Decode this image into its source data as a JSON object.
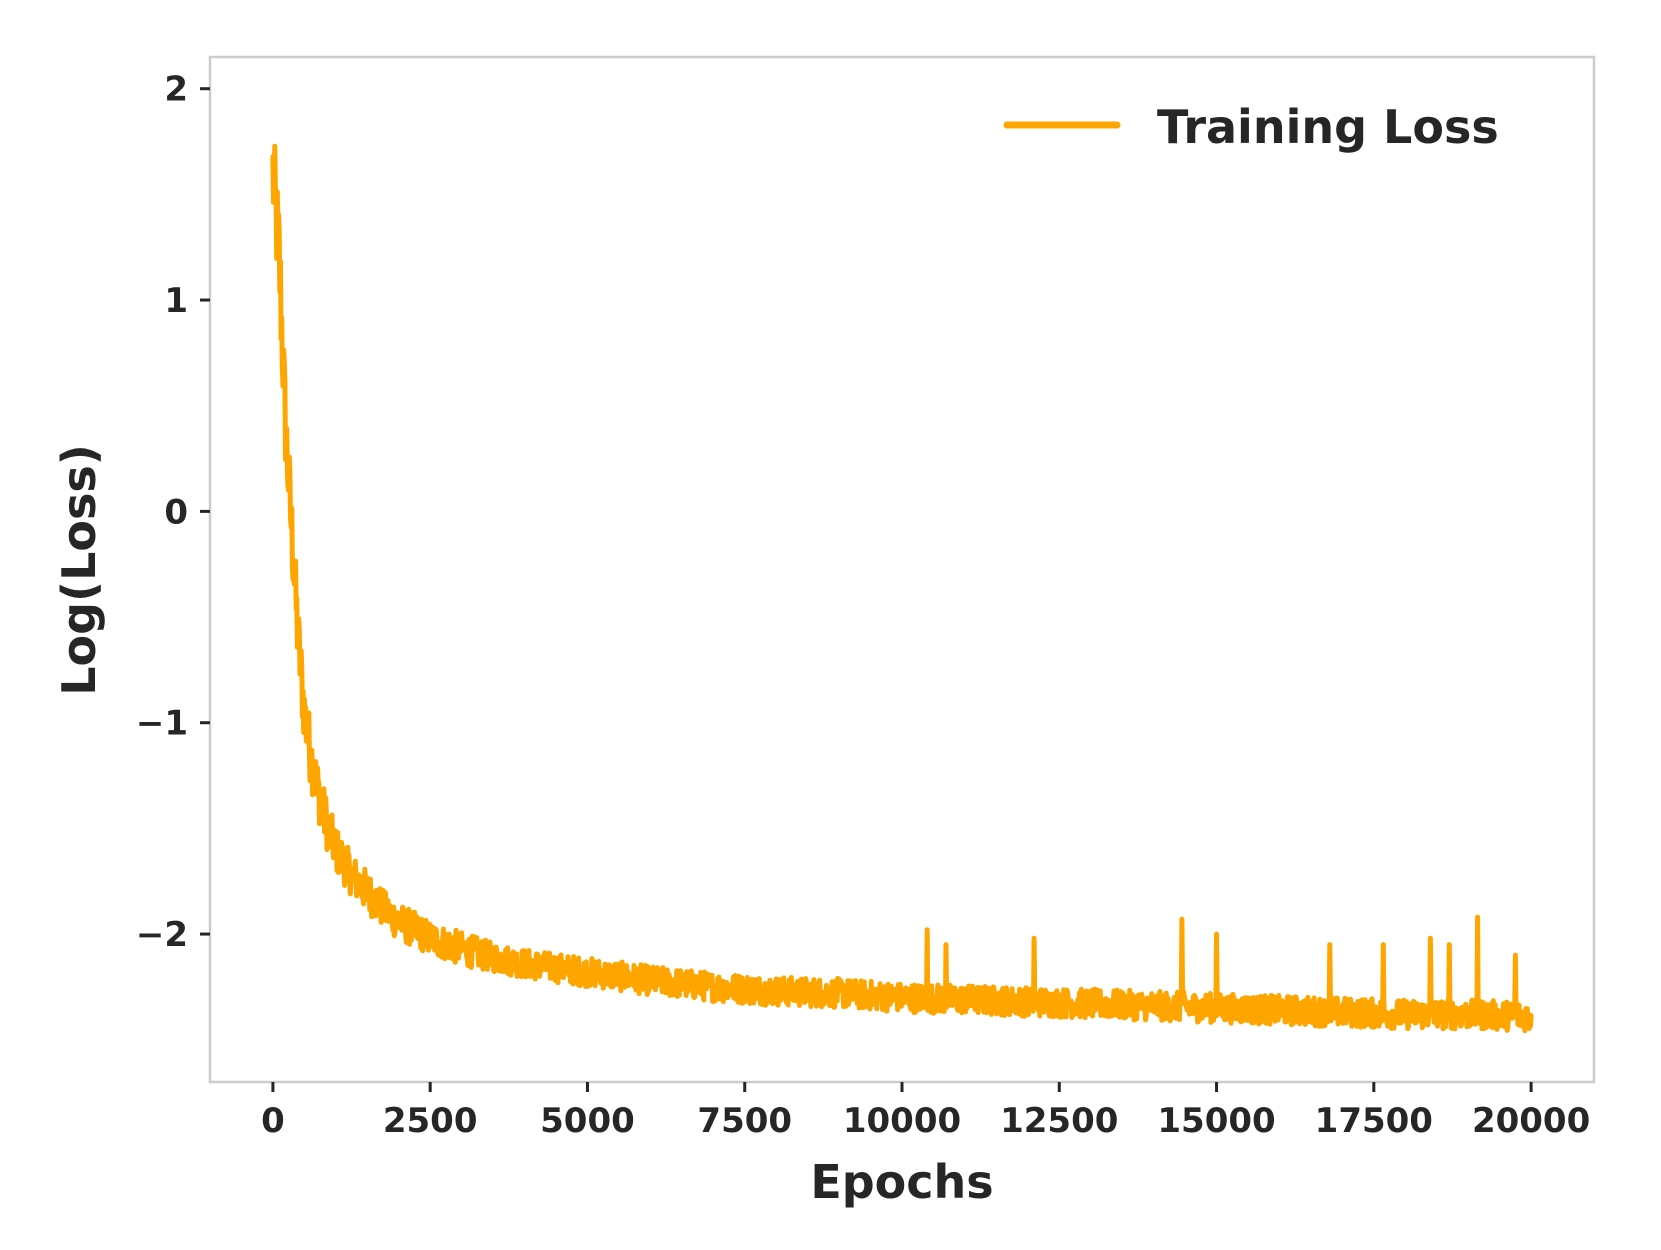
{
  "chart_data": {
    "type": "line",
    "title": "",
    "xlabel": "Epochs",
    "ylabel": "Log(Loss)",
    "xlim": [
      -1000,
      21000
    ],
    "ylim": [
      -2.7,
      2.15
    ],
    "xticks": [
      0,
      2500,
      5000,
      7500,
      10000,
      12500,
      15000,
      17500,
      20000
    ],
    "xtick_labels": [
      "0",
      "2500",
      "5000",
      "7500",
      "10000",
      "12500",
      "15000",
      "17500",
      "20000"
    ],
    "yticks": [
      2,
      1,
      0,
      -1,
      -2
    ],
    "ytick_labels": [
      "2",
      "1",
      "0",
      "−1",
      "−2"
    ],
    "grid": false,
    "legend_position": "top-right",
    "series": [
      {
        "name": "Training Loss",
        "color": "#FFA500",
        "x": [
          0,
          100,
          200,
          300,
          400,
          500,
          600,
          700,
          800,
          900,
          1000,
          1250,
          1500,
          1750,
          2000,
          2500,
          3000,
          3500,
          4000,
          4500,
          5000,
          6000,
          7000,
          8000,
          9000,
          10000,
          11000,
          12000,
          13000,
          14000,
          15000,
          16000,
          17000,
          18000,
          19000,
          20000
        ],
        "y": [
          1.6,
          1.2,
          0.4,
          -0.1,
          -0.6,
          -0.95,
          -1.15,
          -1.3,
          -1.42,
          -1.52,
          -1.6,
          -1.72,
          -1.8,
          -1.88,
          -1.94,
          -2.02,
          -2.07,
          -2.11,
          -2.14,
          -2.16,
          -2.18,
          -2.22,
          -2.25,
          -2.27,
          -2.28,
          -2.3,
          -2.31,
          -2.32,
          -2.33,
          -2.34,
          -2.35,
          -2.36,
          -2.37,
          -2.38,
          -2.38,
          -2.39
        ],
        "noise_amplitude": [
          0.25,
          0.25,
          0.2,
          0.18,
          0.17,
          0.16,
          0.15,
          0.14,
          0.13,
          0.12,
          0.11,
          0.1,
          0.1,
          0.09,
          0.09,
          0.08,
          0.08,
          0.07,
          0.07,
          0.07,
          0.07,
          0.07,
          0.07,
          0.07,
          0.07,
          0.07,
          0.07,
          0.07,
          0.07,
          0.07,
          0.07,
          0.07,
          0.07,
          0.07,
          0.07,
          0.07
        ],
        "spikes": [
          [
            10400,
            -1.98
          ],
          [
            10700,
            -2.05
          ],
          [
            12100,
            -2.02
          ],
          [
            14450,
            -1.93
          ],
          [
            15000,
            -2.0
          ],
          [
            16800,
            -2.05
          ],
          [
            17650,
            -2.05
          ],
          [
            18400,
            -2.02
          ],
          [
            18700,
            -2.05
          ],
          [
            19150,
            -1.92
          ],
          [
            19750,
            -2.1
          ]
        ]
      }
    ]
  }
}
